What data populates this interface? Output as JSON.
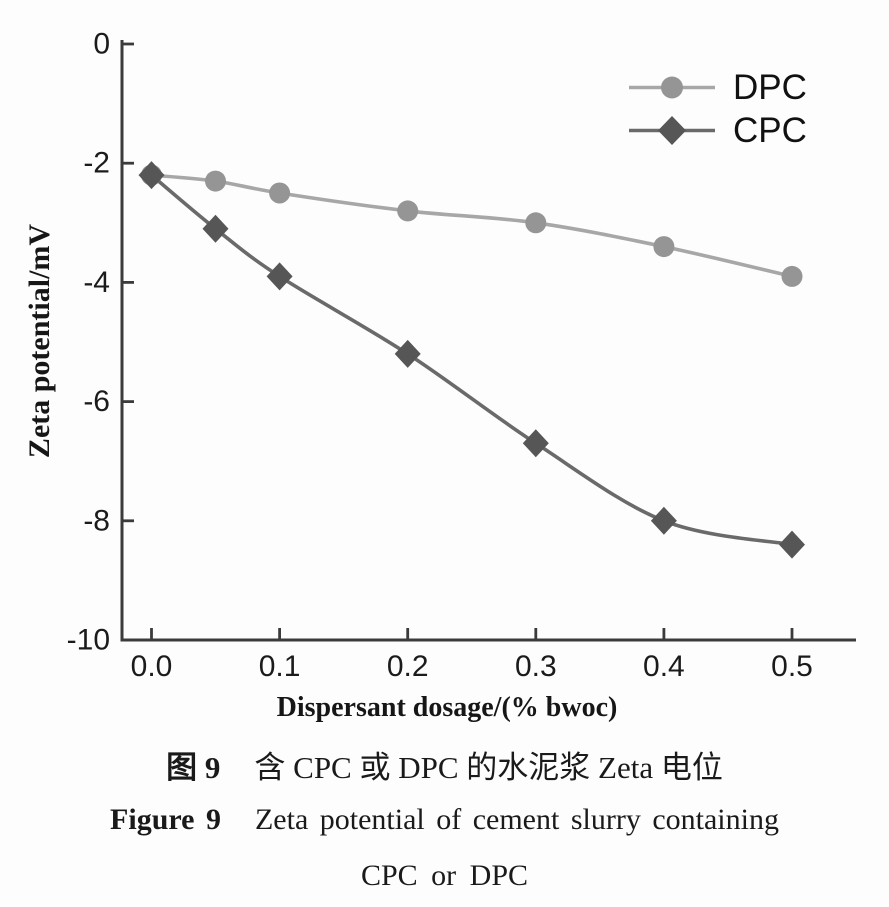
{
  "figure_caption": {
    "zh_prefix": "图 9",
    "zh_title": "含 CPC 或 DPC 的水泥浆 Zeta 电位",
    "en_prefix": "Figure 9",
    "en_title": "Zeta potential of cement slurry containing",
    "en_title_line2": "CPC or DPC"
  },
  "chart_data": {
    "type": "line",
    "title": "",
    "xlabel": "Dispersant dosage/(% bwoc)",
    "ylabel": "Zeta potential/mV",
    "x": [
      0.0,
      0.05,
      0.1,
      0.2,
      0.3,
      0.4,
      0.5
    ],
    "series": [
      {
        "name": "DPC",
        "marker": "circle",
        "marker_color": "#959595",
        "line_color": "#a7a7a7",
        "values": [
          -2.2,
          -2.3,
          -2.5,
          -2.8,
          -3.0,
          -3.4,
          -3.9
        ]
      },
      {
        "name": "CPC",
        "marker": "diamond",
        "marker_color": "#565656",
        "line_color": "#6a6a6a",
        "values": [
          -2.2,
          -3.1,
          -3.9,
          -5.2,
          -6.7,
          -8.0,
          -8.4
        ]
      }
    ],
    "xlim": [
      -0.023,
      0.55
    ],
    "ylim": [
      -10,
      0
    ],
    "x_ticks": [
      0.0,
      0.1,
      0.2,
      0.3,
      0.4,
      0.5
    ],
    "x_tick_labels": [
      "0.0",
      "0.1",
      "0.2",
      "0.3",
      "0.4",
      "0.5"
    ],
    "y_ticks": [
      0,
      -2,
      -4,
      -6,
      -8,
      -10
    ],
    "y_tick_labels": [
      "0",
      "-2",
      "-4",
      "-6",
      "-8",
      "-10"
    ],
    "grid": false,
    "legend_position": "top-right",
    "axis_color": "#3b3b3b",
    "text_color": "#1b1b1b"
  }
}
